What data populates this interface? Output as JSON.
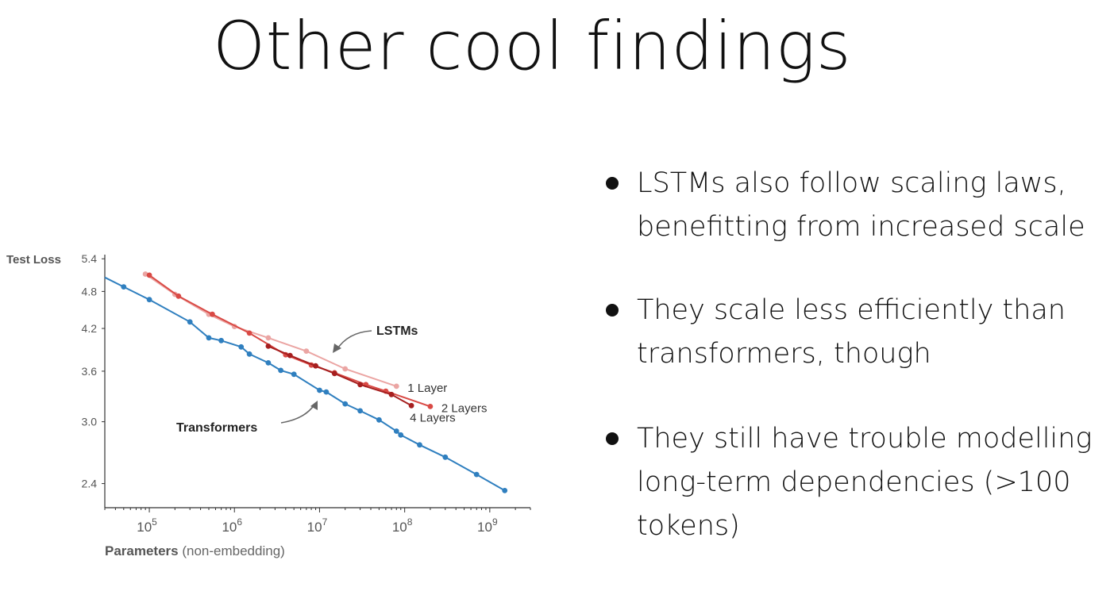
{
  "slide": {
    "title": "Other cool findings",
    "bullets": [
      "LSTMs also follow scaling laws, benefitting from increased scale",
      "They scale less efficiently than transformers, though",
      "They still have trouble modelling long-term dependencies (>100 tokens)"
    ]
  },
  "chart_data": {
    "type": "line",
    "title": "",
    "xlabel": "Parameters",
    "xlabel_note": "(non-embedding)",
    "ylabel": "Test Loss",
    "x_scale": "log",
    "y_scale": "log",
    "xlim": [
      30000,
      3000000000
    ],
    "ylim": [
      2.2,
      5.45
    ],
    "x_ticks": [
      100000,
      1000000,
      10000000,
      100000000,
      1000000000
    ],
    "x_tick_base": "10",
    "x_tick_exponents": [
      "5",
      "6",
      "7",
      "8",
      "9"
    ],
    "y_ticks": [
      2.4,
      3.0,
      3.6,
      4.2,
      4.8,
      5.4
    ],
    "y_tick_labels": [
      "2.4",
      "3.0",
      "3.6",
      "4.2",
      "4.8",
      "5.4"
    ],
    "grid": false,
    "annotations": [
      {
        "text": "LSTMs",
        "points_to": "lstm-series"
      },
      {
        "text": "Transformers",
        "points_to": "transformer-series"
      }
    ],
    "series": [
      {
        "name": "",
        "label": "",
        "color": "#2f7fbf",
        "x": [
          50000,
          100000,
          300000,
          500000,
          700000,
          1200000,
          1500000,
          2500000,
          3500000,
          5000000,
          10000000,
          12000000,
          20000000,
          30000000,
          50000000,
          80000000,
          90000000,
          150000000,
          300000000,
          700000000,
          1500000000
        ],
        "y": [
          4.88,
          4.66,
          4.3,
          4.06,
          4.02,
          3.93,
          3.83,
          3.71,
          3.61,
          3.56,
          3.36,
          3.34,
          3.2,
          3.12,
          3.02,
          2.9,
          2.86,
          2.76,
          2.64,
          2.48,
          2.34
        ]
      },
      {
        "name": "1 Layer",
        "label": "1 Layer",
        "color": "#eba5a3",
        "x": [
          90000,
          200000,
          500000,
          1000000,
          2500000,
          7000000,
          20000000,
          80000000
        ],
        "y": [
          5.11,
          4.75,
          4.42,
          4.23,
          4.06,
          3.87,
          3.63,
          3.41
        ]
      },
      {
        "name": "2 Layers",
        "label": "2 Layers",
        "color": "#d94a45",
        "x": [
          100000,
          220000,
          550000,
          1500000,
          4000000,
          8000000,
          15000000,
          35000000,
          60000000,
          200000000
        ],
        "y": [
          5.09,
          4.72,
          4.42,
          4.13,
          3.82,
          3.68,
          3.58,
          3.43,
          3.35,
          3.17
        ]
      },
      {
        "name": "4 Layers",
        "label": "4 Layers",
        "color": "#a61f1f",
        "x": [
          2500000,
          4500000,
          9000000,
          15000000,
          30000000,
          70000000,
          120000000
        ],
        "y": [
          3.94,
          3.81,
          3.67,
          3.57,
          3.43,
          3.31,
          3.18
        ]
      }
    ]
  }
}
